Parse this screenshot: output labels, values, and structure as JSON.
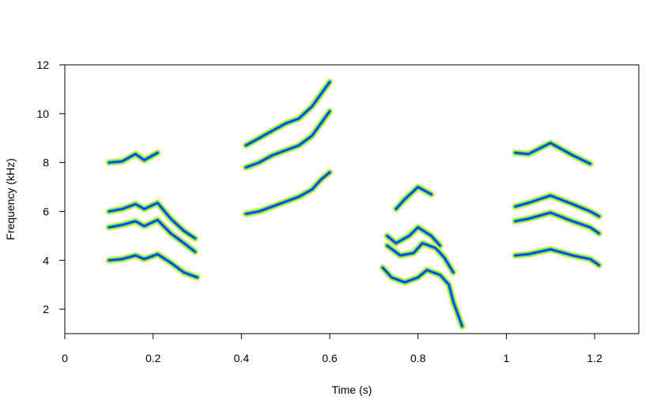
{
  "chart_data": {
    "type": "spectrogram",
    "xlabel": "Time (s)",
    "ylabel": "Frequency (kHz)",
    "xlim": [
      0,
      1.3
    ],
    "ylim": [
      1,
      12
    ],
    "xticks": [
      0,
      0.2,
      0.4,
      0.6,
      0.8,
      1,
      1.2
    ],
    "yticks": [
      2,
      4,
      6,
      8,
      10,
      12
    ],
    "colors": [
      "#f7e37c",
      "#a6f21c",
      "#18d8c8",
      "#1c3fd0"
    ],
    "traces": [
      {
        "x": [
          0.1,
          0.13,
          0.16,
          0.18,
          0.21,
          0.24,
          0.27,
          0.3
        ],
        "y": [
          4.0,
          4.05,
          4.2,
          4.05,
          4.25,
          3.9,
          3.5,
          3.3
        ]
      },
      {
        "x": [
          0.1,
          0.13,
          0.16,
          0.18,
          0.21,
          0.24,
          0.27,
          0.295
        ],
        "y": [
          5.35,
          5.45,
          5.6,
          5.4,
          5.65,
          5.1,
          4.7,
          4.35
        ]
      },
      {
        "x": [
          0.1,
          0.13,
          0.16,
          0.18,
          0.21,
          0.24,
          0.27,
          0.295
        ],
        "y": [
          6.0,
          6.1,
          6.3,
          6.1,
          6.35,
          5.7,
          5.2,
          4.9
        ]
      },
      {
        "x": [
          0.1,
          0.13,
          0.16,
          0.18,
          0.21
        ],
        "y": [
          8.0,
          8.05,
          8.35,
          8.1,
          8.4
        ]
      },
      {
        "x": [
          0.41,
          0.44,
          0.47,
          0.5,
          0.53,
          0.56,
          0.58,
          0.6
        ],
        "y": [
          5.9,
          6.0,
          6.2,
          6.4,
          6.6,
          6.9,
          7.3,
          7.6
        ]
      },
      {
        "x": [
          0.41,
          0.44,
          0.47,
          0.5,
          0.53,
          0.56,
          0.58,
          0.6
        ],
        "y": [
          7.8,
          8.0,
          8.3,
          8.5,
          8.7,
          9.1,
          9.6,
          10.1
        ]
      },
      {
        "x": [
          0.41,
          0.44,
          0.47,
          0.5,
          0.53,
          0.56,
          0.58,
          0.6
        ],
        "y": [
          8.7,
          9.0,
          9.3,
          9.6,
          9.8,
          10.3,
          10.8,
          11.3
        ]
      },
      {
        "x": [
          0.72,
          0.74,
          0.77,
          0.8,
          0.82,
          0.85,
          0.87,
          0.88,
          0.9
        ],
        "y": [
          3.7,
          3.3,
          3.1,
          3.3,
          3.6,
          3.4,
          3.0,
          2.3,
          1.3
        ]
      },
      {
        "x": [
          0.73,
          0.76,
          0.79,
          0.81,
          0.84,
          0.86,
          0.88
        ],
        "y": [
          4.6,
          4.2,
          4.3,
          4.7,
          4.5,
          4.1,
          3.5
        ]
      },
      {
        "x": [
          0.73,
          0.75,
          0.78,
          0.8,
          0.83,
          0.85
        ],
        "y": [
          5.0,
          4.7,
          5.0,
          5.35,
          5.0,
          4.6
        ]
      },
      {
        "x": [
          0.75,
          0.77,
          0.8,
          0.83
        ],
        "y": [
          6.1,
          6.5,
          7.0,
          6.7
        ]
      },
      {
        "x": [
          1.02,
          1.05,
          1.1,
          1.15,
          1.19,
          1.21
        ],
        "y": [
          4.2,
          4.25,
          4.45,
          4.2,
          4.05,
          3.8
        ]
      },
      {
        "x": [
          1.02,
          1.05,
          1.1,
          1.15,
          1.19,
          1.21
        ],
        "y": [
          5.6,
          5.7,
          5.95,
          5.6,
          5.35,
          5.1
        ]
      },
      {
        "x": [
          1.02,
          1.05,
          1.1,
          1.15,
          1.19,
          1.21
        ],
        "y": [
          6.2,
          6.35,
          6.65,
          6.3,
          6.0,
          5.8
        ]
      },
      {
        "x": [
          1.02,
          1.05,
          1.1,
          1.15,
          1.19
        ],
        "y": [
          8.4,
          8.35,
          8.8,
          8.3,
          7.95
        ]
      }
    ]
  }
}
